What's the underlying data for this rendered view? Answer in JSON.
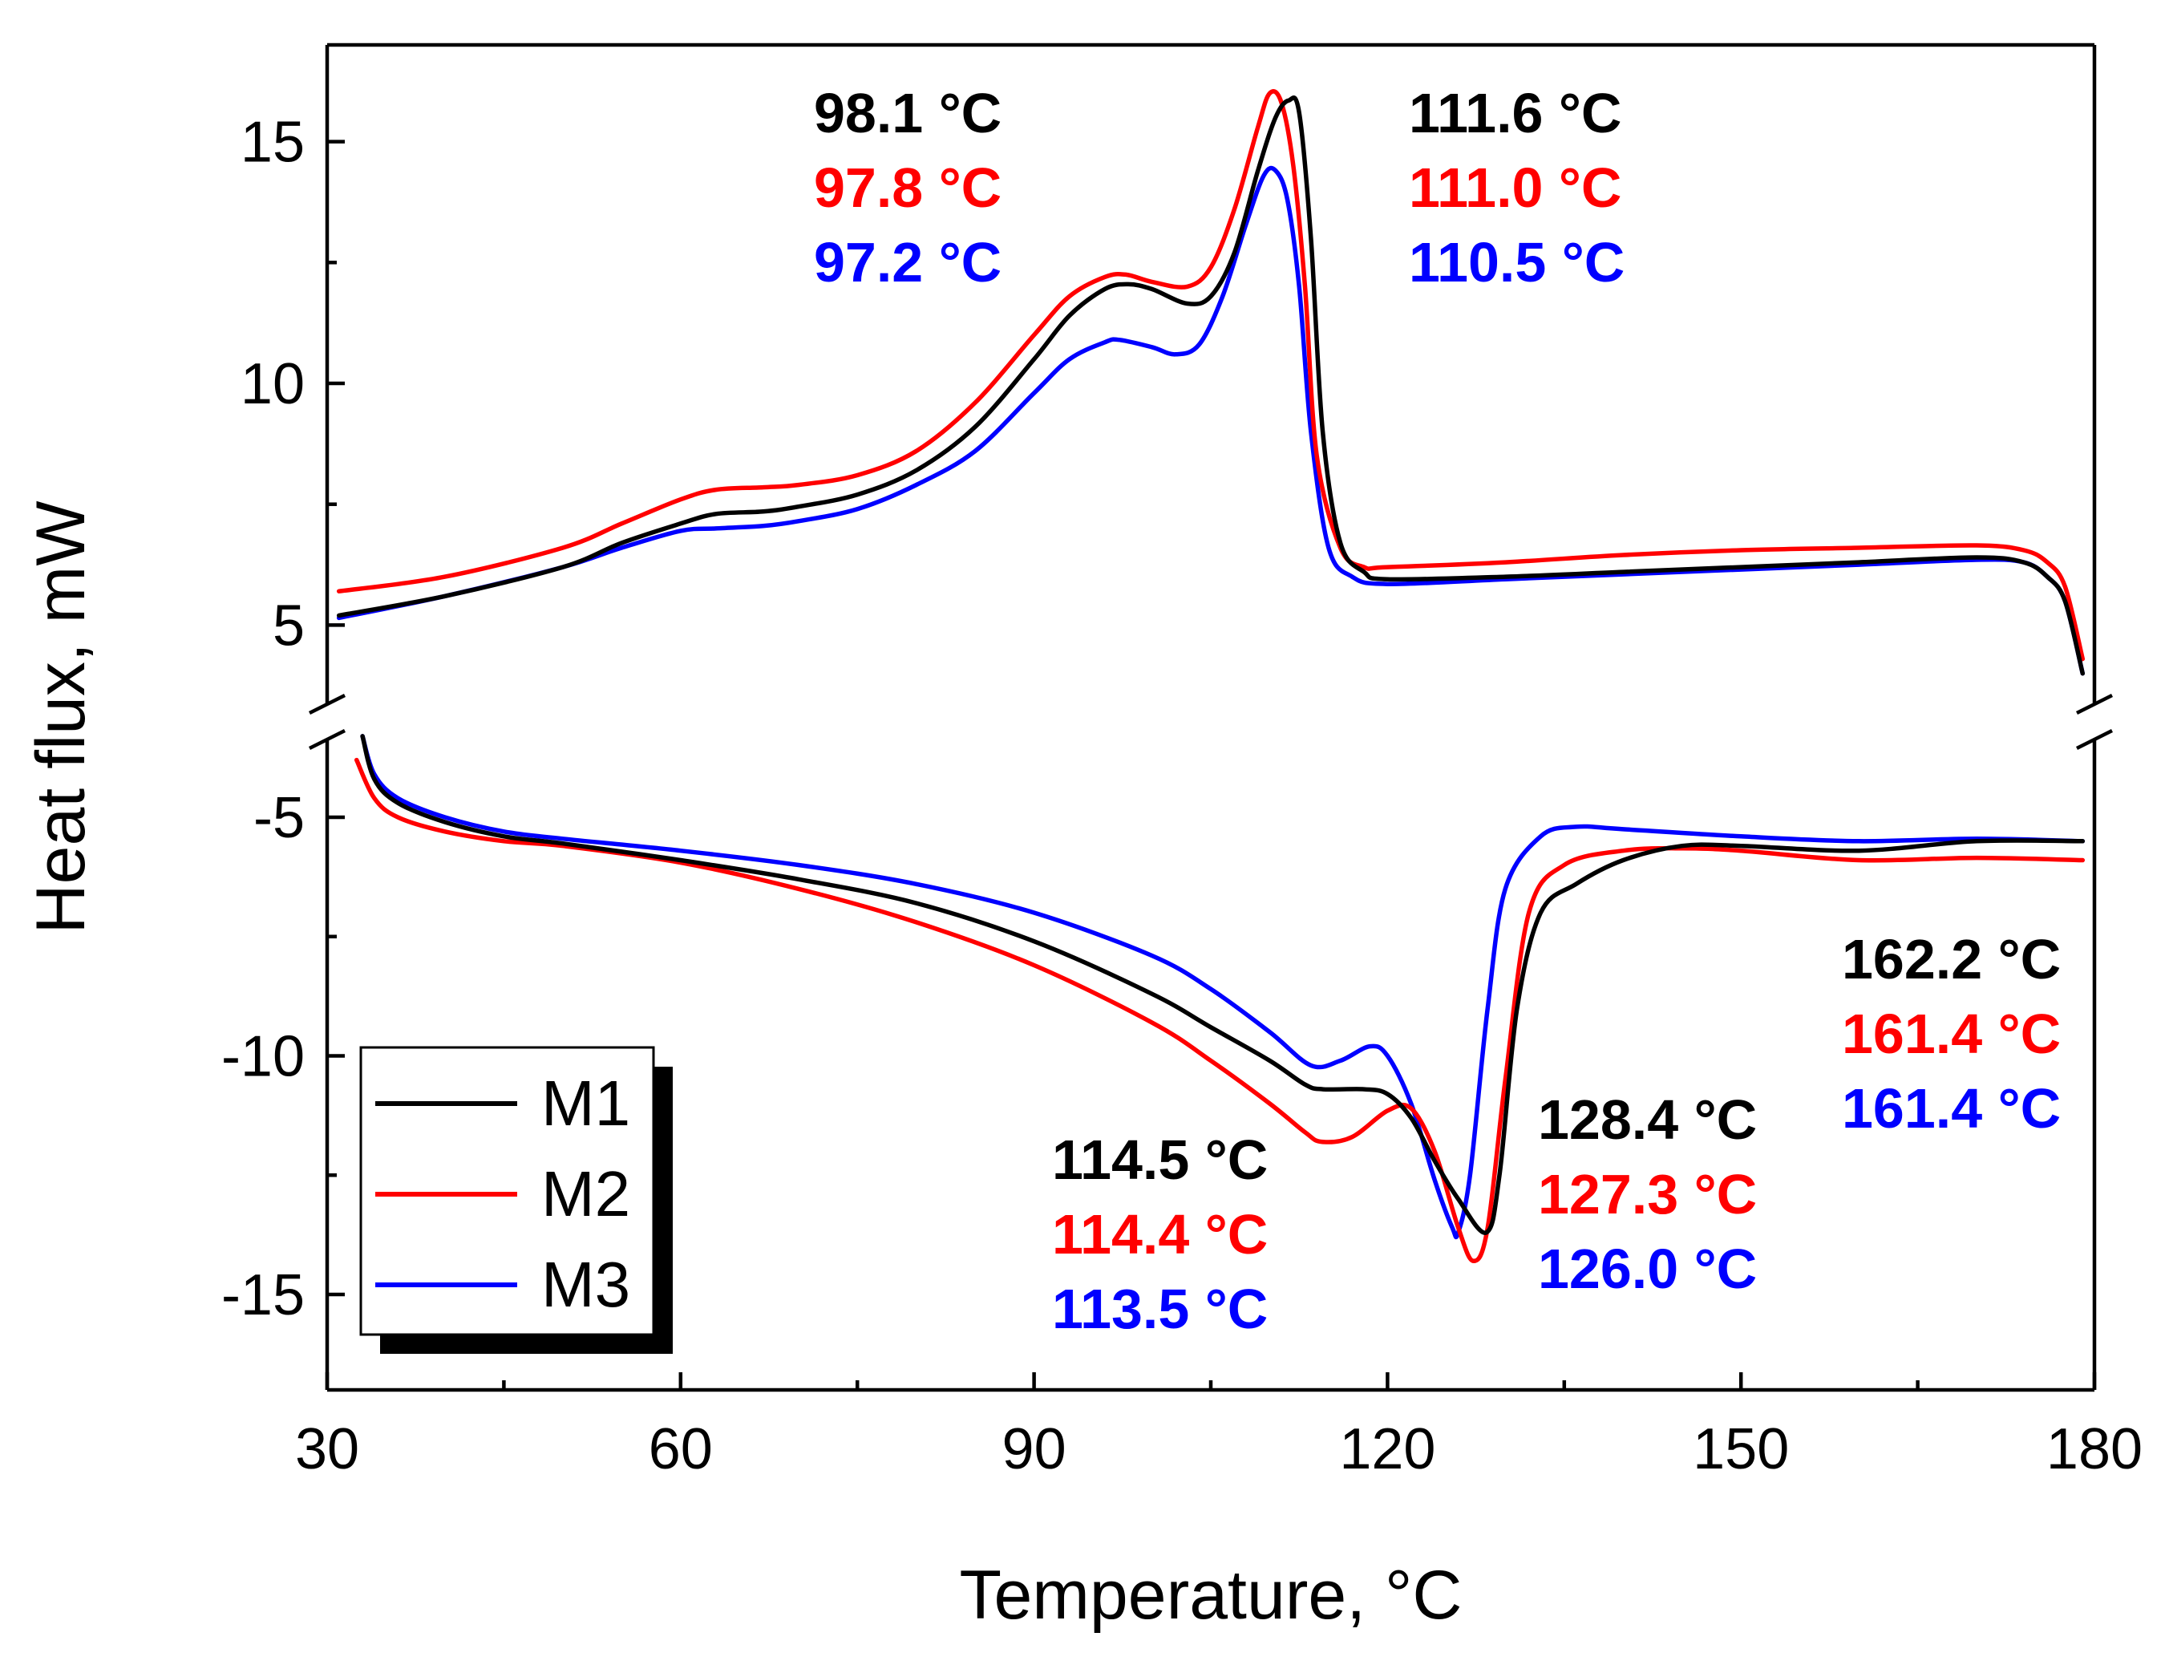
{
  "chart_data": {
    "type": "line",
    "xlabel": "Temperature, °C",
    "ylabel": "Heat flux, mW",
    "xlim": [
      30,
      180
    ],
    "x_ticks": [
      30,
      60,
      90,
      120,
      150,
      180
    ],
    "upper_panel": {
      "ylim": [
        3,
        17
      ],
      "y_ticks": [
        5,
        10,
        15
      ]
    },
    "lower_panel": {
      "ylim": [
        -17,
        -3
      ],
      "y_ticks": [
        -5,
        -10,
        -15
      ]
    },
    "colors": {
      "M1": "#000000",
      "M2": "#ff0000",
      "M3": "#0000ff"
    },
    "legend": {
      "position": "bottom-left",
      "entries": [
        "M1",
        "M2",
        "M3"
      ]
    },
    "series": [
      {
        "name": "M1",
        "panel": "upper",
        "color": "#000000",
        "x": [
          31,
          40,
          50,
          55,
          60,
          63,
          67,
          70,
          75,
          80,
          85,
          90,
          93,
          96,
          98,
          100,
          103,
          105,
          107,
          109,
          110.5,
          111.6,
          112.5,
          113.5,
          114.5,
          116,
          118,
          120,
          130,
          140,
          150,
          160,
          170,
          174,
          176,
          177.5,
          179
        ],
        "y": [
          5.2,
          5.6,
          6.2,
          6.7,
          7.1,
          7.3,
          7.35,
          7.45,
          7.7,
          8.2,
          9.1,
          10.5,
          11.4,
          11.95,
          12.05,
          11.95,
          11.65,
          11.8,
          12.7,
          14.4,
          15.5,
          15.85,
          15.6,
          13.0,
          9.0,
          6.7,
          6.1,
          5.95,
          6.0,
          6.1,
          6.2,
          6.3,
          6.4,
          6.3,
          6.0,
          5.5,
          4.0
        ]
      },
      {
        "name": "M2",
        "panel": "upper",
        "color": "#ff0000",
        "x": [
          31,
          40,
          50,
          55,
          60,
          63,
          67,
          70,
          75,
          80,
          85,
          90,
          93,
          96,
          97.8,
          100,
          103,
          105,
          107,
          109,
          110,
          111,
          112,
          113,
          114,
          116,
          118,
          120,
          130,
          140,
          150,
          160,
          170,
          174,
          176,
          177.5,
          179
        ],
        "y": [
          5.7,
          6.0,
          6.6,
          7.1,
          7.6,
          7.8,
          7.85,
          7.9,
          8.1,
          8.6,
          9.6,
          11.0,
          11.8,
          12.2,
          12.25,
          12.1,
          12.0,
          12.4,
          13.6,
          15.3,
          16.0,
          15.8,
          14.5,
          12.0,
          8.5,
          6.6,
          6.2,
          6.2,
          6.3,
          6.45,
          6.55,
          6.6,
          6.65,
          6.55,
          6.3,
          5.8,
          4.3
        ]
      },
      {
        "name": "M3",
        "panel": "upper",
        "color": "#0000ff",
        "x": [
          31,
          40,
          50,
          55,
          60,
          63,
          67,
          70,
          75,
          80,
          85,
          90,
          93,
          96,
          97.2,
          100,
          102,
          104,
          106,
          108,
          109.5,
          110.5,
          111.5,
          112.5,
          113.5,
          115,
          117,
          120,
          130,
          140,
          150,
          160,
          170,
          174,
          176,
          177.5,
          179
        ],
        "y": [
          5.15,
          5.6,
          6.2,
          6.6,
          6.95,
          7.0,
          7.05,
          7.15,
          7.4,
          7.9,
          8.6,
          9.8,
          10.5,
          10.85,
          10.9,
          10.75,
          10.6,
          10.8,
          11.8,
          13.3,
          14.3,
          14.4,
          13.8,
          12.0,
          9.0,
          6.6,
          6.0,
          5.85,
          5.95,
          6.05,
          6.15,
          6.25,
          6.35,
          6.3,
          6.0,
          5.5,
          4.0
        ]
      },
      {
        "name": "M1",
        "panel": "lower",
        "color": "#000000",
        "x": [
          33,
          34,
          36,
          40,
          45,
          50,
          60,
          70,
          80,
          90,
          100,
          105,
          110,
          113,
          114.5,
          118,
          120,
          122,
          124,
          126,
          128.4,
          129.5,
          131,
          133,
          136,
          140,
          145,
          150,
          160,
          170,
          179
        ],
        "y": [
          -3.3,
          -4.2,
          -4.7,
          -5.1,
          -5.4,
          -5.55,
          -5.9,
          -6.3,
          -6.8,
          -7.6,
          -8.7,
          -9.4,
          -10.1,
          -10.6,
          -10.7,
          -10.7,
          -10.8,
          -11.3,
          -12.2,
          -13.0,
          -13.7,
          -12.5,
          -9.0,
          -7.0,
          -6.4,
          -5.9,
          -5.6,
          -5.6,
          -5.7,
          -5.5,
          -5.5
        ]
      },
      {
        "name": "M2",
        "panel": "lower",
        "color": "#ff0000",
        "x": [
          32.5,
          34,
          36,
          40,
          45,
          50,
          60,
          70,
          80,
          90,
          100,
          105,
          110,
          113,
          114.4,
          117,
          120,
          122,
          124,
          126,
          127.3,
          128.5,
          130,
          132,
          135,
          140,
          145,
          150,
          160,
          170,
          179
        ],
        "y": [
          -3.8,
          -4.6,
          -5.0,
          -5.3,
          -5.5,
          -5.6,
          -5.95,
          -6.5,
          -7.2,
          -8.1,
          -9.3,
          -10.1,
          -11.0,
          -11.6,
          -11.8,
          -11.7,
          -11.15,
          -11.1,
          -12.0,
          -13.6,
          -14.3,
          -13.6,
          -10.5,
          -7.0,
          -6.0,
          -5.7,
          -5.65,
          -5.7,
          -5.9,
          -5.85,
          -5.9
        ]
      },
      {
        "name": "M3",
        "panel": "lower",
        "color": "#0000ff",
        "x": [
          33,
          34,
          36,
          40,
          45,
          50,
          60,
          70,
          80,
          90,
          100,
          105,
          110,
          113.5,
          116,
          118.5,
          120,
          122,
          124,
          125.5,
          126,
          127,
          128.5,
          130,
          133,
          136,
          140,
          150,
          160,
          170,
          179
        ],
        "y": [
          -3.3,
          -4.1,
          -4.6,
          -5.0,
          -5.3,
          -5.45,
          -5.7,
          -6.0,
          -6.4,
          -7.0,
          -7.9,
          -8.6,
          -9.5,
          -10.2,
          -10.1,
          -9.8,
          -10.0,
          -11.0,
          -12.6,
          -13.6,
          -13.7,
          -12.5,
          -9.0,
          -6.5,
          -5.4,
          -5.2,
          -5.25,
          -5.4,
          -5.5,
          -5.45,
          -5.5
        ]
      }
    ],
    "annotations": [
      {
        "group": "upper-1",
        "items": [
          {
            "text": "98.1 °C",
            "color": "#000000"
          },
          {
            "text": "97.8 °C",
            "color": "#ff0000"
          },
          {
            "text": "97.2 °C",
            "color": "#0000ff"
          }
        ]
      },
      {
        "group": "upper-2",
        "items": [
          {
            "text": "111.6 °C",
            "color": "#000000"
          },
          {
            "text": "111.0 °C",
            "color": "#ff0000"
          },
          {
            "text": "110.5 °C",
            "color": "#0000ff"
          }
        ]
      },
      {
        "group": "lower-1",
        "items": [
          {
            "text": "114.5 °C",
            "color": "#000000"
          },
          {
            "text": "114.4 °C",
            "color": "#ff0000"
          },
          {
            "text": "113.5 °C",
            "color": "#0000ff"
          }
        ]
      },
      {
        "group": "lower-2",
        "items": [
          {
            "text": "128.4 °C",
            "color": "#000000"
          },
          {
            "text": "127.3 °C",
            "color": "#ff0000"
          },
          {
            "text": "126.0 °C",
            "color": "#0000ff"
          }
        ]
      },
      {
        "group": "lower-3",
        "items": [
          {
            "text": "162.2 °C",
            "color": "#000000"
          },
          {
            "text": "161.4 °C",
            "color": "#ff0000"
          },
          {
            "text": "161.4 °C",
            "color": "#0000ff"
          }
        ]
      }
    ]
  }
}
